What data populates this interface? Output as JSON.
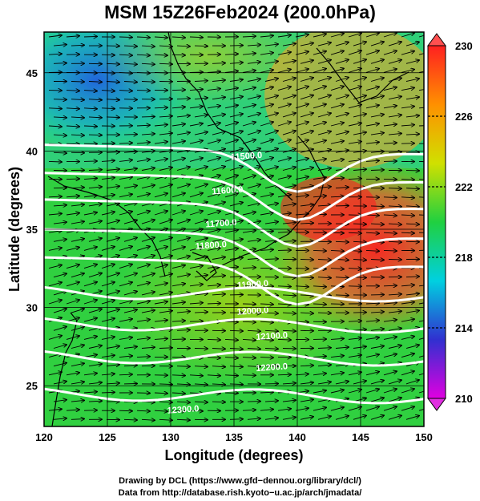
{
  "title": "MSM 15Z26Feb2024 (200.0hPa)",
  "xlabel": "Longitude (degrees)",
  "ylabel": "Latitude  (degrees)",
  "footer": {
    "line1": "Drawing by DCL (https://www.gfd−dennou.org/library/dcl/)",
    "line2": "Data from http://database.rish.kyoto−u.ac.jp/arch/jmadata/"
  },
  "chart_data": {
    "type": "heatmap",
    "xlim": [
      120,
      150
    ],
    "ylim": [
      22.4,
      47.6
    ],
    "xticks": [
      120,
      125,
      130,
      135,
      140,
      145,
      150
    ],
    "xticklabels": [
      "120",
      "125",
      "130",
      "135",
      "140",
      "145",
      "150"
    ],
    "yticks": [
      25,
      30,
      35,
      40,
      45
    ],
    "yticklabels": [
      "25",
      "30",
      "35",
      "40",
      "45"
    ],
    "colorbar": {
      "min": 210,
      "max": 230,
      "ticks": [
        210,
        214,
        218,
        222,
        226,
        230
      ],
      "ticklabels": [
        "210",
        "214",
        "218",
        "222",
        "226",
        "230"
      ],
      "colors": [
        "#e000e0",
        "#3030d0",
        "#00d0e0",
        "#20d040",
        "#d0e000",
        "#ff9000",
        "#ff2020"
      ]
    },
    "contours": {
      "color": "#ffffff",
      "labels": [
        {
          "text": "11500.0",
          "lon": 136.0,
          "lat": 39.5
        },
        {
          "text": "11600.0",
          "lon": 134.5,
          "lat": 37.3
        },
        {
          "text": "11700.0",
          "lon": 134.0,
          "lat": 35.2
        },
        {
          "text": "11800.0",
          "lon": 133.2,
          "lat": 33.8
        },
        {
          "text": "11900.0",
          "lon": 136.5,
          "lat": 31.3
        },
        {
          "text": "12000.0",
          "lon": 136.5,
          "lat": 29.6
        },
        {
          "text": "12100.0",
          "lon": 138.0,
          "lat": 28.0
        },
        {
          "text": "12200.0",
          "lon": 138.0,
          "lat": 26.0
        },
        {
          "text": "12300.0",
          "lon": 131.0,
          "lat": 23.3
        }
      ]
    },
    "wind_vectors": "dense field of arrows flowing west-to-east (jet stream)"
  }
}
